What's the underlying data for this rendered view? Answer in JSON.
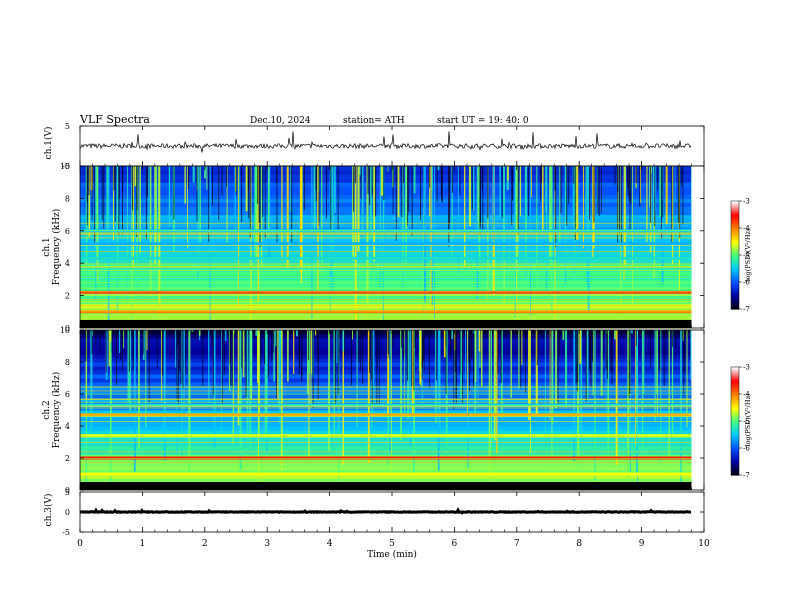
{
  "header": {
    "title": "VLF  Spectra",
    "date": "Dec.10, 2024",
    "station": "station= ATH",
    "start": "start  UT  =    19: 40: 0"
  },
  "chart_data": [
    {
      "type": "line",
      "panel": "ch1-waveform",
      "ylabel": "ch.1(V)",
      "ylim": [
        -5,
        5
      ],
      "yticks": [
        5,
        -5
      ],
      "xlim": [
        0,
        10
      ],
      "color": "#000000"
    },
    {
      "type": "heatmap",
      "panel": "ch1-spectrogram",
      "ylabel_lines": [
        "ch.1",
        "Frequency  (kHz)"
      ],
      "ylim": [
        0,
        10
      ],
      "yticks": [
        0,
        2,
        4,
        6,
        8,
        10
      ],
      "xlim": [
        0,
        10
      ],
      "data_end_min": 9.8,
      "colorbar": {
        "label": "log(PSD)(V²/Hz)",
        "range": [
          -7,
          -3
        ],
        "ticks": [
          -3,
          -4,
          -5,
          -6,
          -7
        ],
        "colormap": [
          "#000000",
          "#0000a0",
          "#0050ff",
          "#00c8ff",
          "#40ff80",
          "#ffff00",
          "#ff8000",
          "#ff0000",
          "#ffffff"
        ]
      },
      "bands_khz": [
        {
          "f": 1.0,
          "level": -4.0
        },
        {
          "f": 2.2,
          "level": -3.8
        },
        {
          "f": 3.7,
          "level": -5.2
        },
        {
          "f": 4.3,
          "level": -5.3
        },
        {
          "f": 5.2,
          "level": -5.6
        },
        {
          "f": 6.0,
          "level": -5.4
        }
      ]
    },
    {
      "type": "heatmap",
      "panel": "ch2-spectrogram",
      "ylabel_lines": [
        "ch.2",
        "Frequency  (kHz)"
      ],
      "ylim": [
        0,
        10
      ],
      "yticks": [
        0,
        2,
        4,
        6,
        8,
        10
      ],
      "xlim": [
        0,
        10
      ],
      "data_end_min": 9.8,
      "colorbar": {
        "label": "log(PSD)(V²/Hz)",
        "range": [
          -7,
          -3
        ],
        "ticks": [
          -3,
          -4,
          -5,
          -6,
          -7
        ],
        "colormap": [
          "#000000",
          "#0000a0",
          "#0050ff",
          "#00c8ff",
          "#40ff80",
          "#ffff00",
          "#ff8000",
          "#ff0000",
          "#ffffff"
        ]
      },
      "bands_khz": [
        {
          "f": 1.0,
          "level": -4.5
        },
        {
          "f": 2.0,
          "level": -3.6
        },
        {
          "f": 3.4,
          "level": -4.6
        },
        {
          "f": 4.7,
          "level": -4.2
        },
        {
          "f": 5.3,
          "level": -5.4
        }
      ]
    },
    {
      "type": "line",
      "panel": "ch3-waveform",
      "ylabel": "ch.3(V)",
      "ylim": [
        -5,
        5
      ],
      "yticks": [
        5,
        0,
        -5
      ],
      "xlim": [
        0,
        10
      ],
      "color": "#000000"
    }
  ],
  "xaxis": {
    "label": "Time  (min)",
    "ticks": [
      "0",
      "1",
      "2",
      "3",
      "4",
      "5",
      "6",
      "7",
      "8",
      "9",
      "10"
    ]
  }
}
